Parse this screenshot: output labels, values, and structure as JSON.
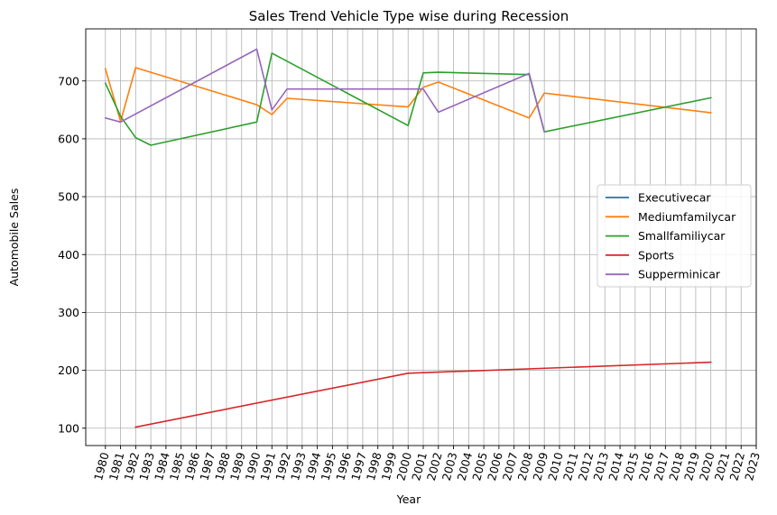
{
  "chart_data": {
    "type": "line",
    "title": "Sales Trend Vehicle Type wise during Recession",
    "xlabel": "Year",
    "ylabel": "Automobile Sales",
    "xlim": [
      1978.7,
      2023.0
    ],
    "ylim": [
      70,
      790
    ],
    "xticks": [
      1980,
      1981,
      1982,
      1983,
      1984,
      1985,
      1986,
      1987,
      1988,
      1989,
      1990,
      1991,
      1992,
      1993,
      1994,
      1995,
      1996,
      1997,
      1998,
      1999,
      2000,
      2001,
      2002,
      2003,
      2004,
      2005,
      2006,
      2007,
      2008,
      2009,
      2010,
      2011,
      2012,
      2013,
      2014,
      2015,
      2016,
      2017,
      2018,
      2019,
      2020,
      2021,
      2022,
      2023
    ],
    "yticks": [
      100,
      200,
      300,
      400,
      500,
      600,
      700
    ],
    "grid": true,
    "legend_position": "center-right",
    "series": [
      {
        "name": "Executivecar",
        "color": "#1f77b4",
        "x": [],
        "y": []
      },
      {
        "name": "Mediumfamilycar",
        "color": "#ff7f0e",
        "x": [
          1980,
          1981,
          1982,
          1990,
          1991,
          1992,
          2000,
          2001,
          2002,
          2008,
          2009,
          2020
        ],
        "y": [
          721,
          630,
          723,
          659,
          642,
          670,
          655,
          689,
          698,
          636,
          679,
          645
        ]
      },
      {
        "name": "Smallfamiliycar",
        "color": "#2ca02c",
        "x": [
          1980,
          1981,
          1982,
          1983,
          1990,
          1991,
          2000,
          2001,
          2002,
          2008,
          2009,
          2020
        ],
        "y": [
          696,
          639,
          602,
          589,
          629,
          748,
          623,
          714,
          715,
          711,
          612,
          671
        ]
      },
      {
        "name": "Sports",
        "color": "#d62728",
        "x": [
          1982,
          2000,
          2020
        ],
        "y": [
          102,
          195,
          214
        ]
      },
      {
        "name": "Supperminicar",
        "color": "#9467bd",
        "x": [
          1980,
          1981,
          1990,
          1991,
          1992,
          2000,
          2001,
          2002,
          2008,
          2009
        ],
        "y": [
          636,
          629,
          755,
          650,
          686,
          686,
          686,
          646,
          713,
          612
        ]
      }
    ]
  }
}
